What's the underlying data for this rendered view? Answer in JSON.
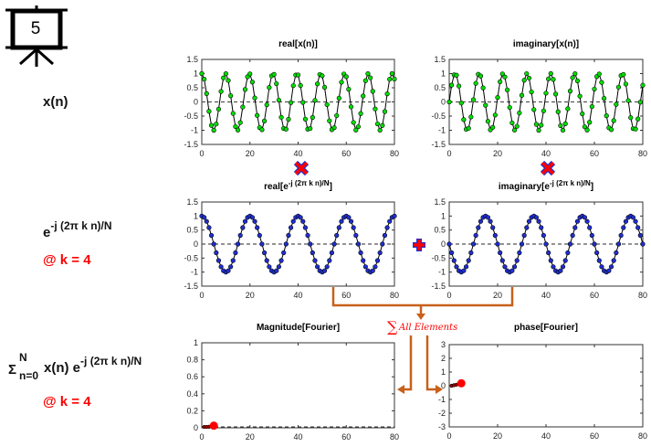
{
  "slide": {
    "number": "5",
    "icon": "presentation-board-icon"
  },
  "left_labels": {
    "xn": "x(n)",
    "basis_base": "e",
    "basis_exp": "-j (2π k n)/N",
    "basis_k": "@ k = 4",
    "sum_sigma": "Σ",
    "sum_upper": "N",
    "sum_lower": "n=0",
    "sum_body": "x(n) e",
    "sum_exp": "-j (2π k n)/N",
    "sum_k": "@ k = 4"
  },
  "operators": {
    "multiply": "multiply-icon",
    "add": "plus-icon",
    "sum_symbol": "∑",
    "sum_label": "All Elements"
  },
  "colors": {
    "green": "#00dd00",
    "blue": "#1f2fd0",
    "red": "#ff0000",
    "orange": "#c8601a"
  },
  "chart_data": [
    {
      "id": "real-xn",
      "type": "line",
      "title": "real[x(n)]",
      "marker_color": "#00dd00",
      "func": "cos",
      "sign": 1,
      "cycles": 8.1,
      "n": [
        0,
        80
      ],
      "xlim": [
        0,
        80
      ],
      "ylim": [
        -1.5,
        1.5
      ],
      "xticks": [
        "0",
        "20",
        "40",
        "60",
        "80"
      ],
      "yticks": [
        "-1.5",
        "-1",
        "-0.5",
        "0",
        "0.5",
        "1",
        "1.5"
      ]
    },
    {
      "id": "imag-xn",
      "type": "line",
      "title": "imaginary[x(n)]",
      "marker_color": "#00dd00",
      "func": "sin",
      "sign": 1,
      "cycles": 8.1,
      "n": [
        0,
        80
      ],
      "xlim": [
        0,
        80
      ],
      "ylim": [
        -1.5,
        1.5
      ],
      "xticks": [
        "0",
        "20",
        "40",
        "60",
        "80"
      ],
      "yticks": [
        "-1.5",
        "-1",
        "-0.5",
        "0",
        "0.5",
        "1",
        "1.5"
      ]
    },
    {
      "id": "real-basis",
      "type": "line",
      "title_base": "real[e",
      "title_exp": "-j (2π k n)/N",
      "title_end": "]",
      "marker_color": "#1f2fd0",
      "func": "cos",
      "sign": 1,
      "cycles": 4,
      "n": [
        0,
        80
      ],
      "xlim": [
        0,
        80
      ],
      "ylim": [
        -1.5,
        1.5
      ],
      "xticks": [
        "0",
        "20",
        "40",
        "60",
        "80"
      ],
      "yticks": [
        "-1.5",
        "-1",
        "-0.5",
        "0",
        "0.5",
        "1",
        "1.5"
      ]
    },
    {
      "id": "imag-basis",
      "type": "line",
      "title_base": "imaginary[e",
      "title_exp": "-j (2π k n)/N",
      "title_end": "]",
      "marker_color": "#1f2fd0",
      "func": "sin",
      "sign": -1,
      "cycles": 4,
      "n": [
        0,
        80
      ],
      "xlim": [
        0,
        80
      ],
      "ylim": [
        -1.5,
        1.5
      ],
      "xticks": [
        "0",
        "20",
        "40",
        "60",
        "80"
      ],
      "yticks": [
        "-1.5",
        "-1",
        "-0.5",
        "0",
        "0.5",
        "1",
        "1.5"
      ]
    },
    {
      "id": "magnitude",
      "type": "scatter",
      "title": "Magnitude[Fourier]",
      "x": [
        1,
        2,
        3,
        4,
        5
      ],
      "y": [
        0.01,
        0.01,
        0.012,
        0.015,
        0.025
      ],
      "highlight_index": 4,
      "xlim": [
        0,
        80
      ],
      "ylim": [
        0,
        1
      ],
      "xticks": [
        "0",
        "20",
        "40",
        "60",
        "80"
      ],
      "yticks": [
        "0",
        "0.2",
        "0.4",
        "0.6",
        "0.8",
        "1"
      ]
    },
    {
      "id": "phase",
      "type": "scatter",
      "title": "phase[Fourier]",
      "x": [
        1,
        2,
        3,
        4,
        5
      ],
      "y": [
        0.0,
        0.04,
        0.08,
        0.12,
        0.18
      ],
      "highlight_index": 4,
      "xlim": [
        0,
        80
      ],
      "ylim": [
        -3,
        3
      ],
      "xticks": [
        "0",
        "20",
        "40",
        "60",
        "80"
      ],
      "yticks": [
        "-3",
        "-2",
        "-1",
        "0",
        "1",
        "2",
        "3"
      ]
    }
  ]
}
